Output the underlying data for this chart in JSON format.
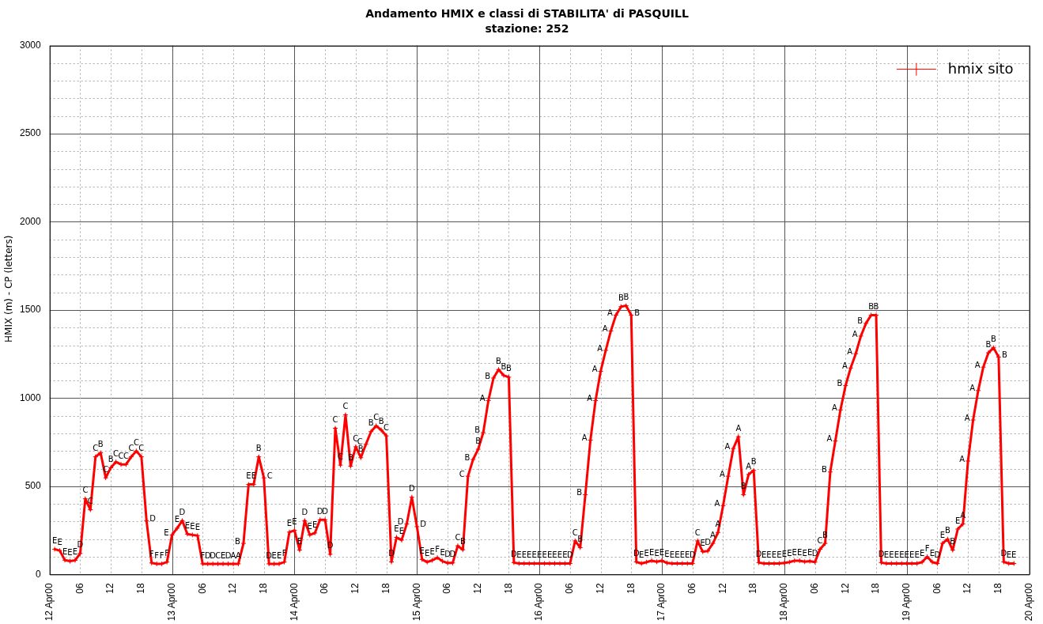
{
  "chart_data": {
    "type": "line",
    "title": "Andamento HMIX e classi di STABILITA' di PASQUILL",
    "subtitle": "stazione: 252",
    "ylabel": "HMIX (m) - CP (letters)",
    "xlim": [
      "--04-12T00:00",
      "--04-20T00:00"
    ],
    "xticks": [
      {
        "value": "--04-12T00:00",
        "label": "12 Apr00"
      },
      {
        "value": "--04-12T06:00",
        "label": "06"
      },
      {
        "value": "--04-12T12:00",
        "label": "12"
      },
      {
        "value": "--04-12T18:00",
        "label": "18"
      },
      {
        "value": "--04-13T00:00",
        "label": "13 Apr00"
      },
      {
        "value": "--04-13T06:00",
        "label": "06"
      },
      {
        "value": "--04-13T12:00",
        "label": "12"
      },
      {
        "value": "--04-13T18:00",
        "label": "18"
      },
      {
        "value": "--04-14T00:00",
        "label": "14 Apr00"
      },
      {
        "value": "--04-14T06:00",
        "label": "06"
      },
      {
        "value": "--04-14T12:00",
        "label": "12"
      },
      {
        "value": "--04-14T18:00",
        "label": "18"
      },
      {
        "value": "--04-15T00:00",
        "label": "15 Apr00"
      },
      {
        "value": "--04-15T06:00",
        "label": "06"
      },
      {
        "value": "--04-15T12:00",
        "label": "12"
      },
      {
        "value": "--04-15T18:00",
        "label": "18"
      },
      {
        "value": "--04-16T00:00",
        "label": "16 Apr00"
      },
      {
        "value": "--04-16T06:00",
        "label": "06"
      },
      {
        "value": "--04-16T12:00",
        "label": "12"
      },
      {
        "value": "--04-16T18:00",
        "label": "18"
      },
      {
        "value": "--04-17T00:00",
        "label": "17 Apr00"
      },
      {
        "value": "--04-17T06:00",
        "label": "06"
      },
      {
        "value": "--04-17T12:00",
        "label": "12"
      },
      {
        "value": "--04-17T18:00",
        "label": "18"
      },
      {
        "value": "--04-18T00:00",
        "label": "18 Apr00"
      },
      {
        "value": "--04-18T06:00",
        "label": "06"
      },
      {
        "value": "--04-18T12:00",
        "label": "12"
      },
      {
        "value": "--04-18T18:00",
        "label": "18"
      },
      {
        "value": "--04-19T00:00",
        "label": "19 Apr00"
      },
      {
        "value": "--04-19T06:00",
        "label": "06"
      },
      {
        "value": "--04-19T12:00",
        "label": "12"
      },
      {
        "value": "--04-19T18:00",
        "label": "18"
      },
      {
        "value": "--04-20T00:00",
        "label": "20 Apr00"
      }
    ],
    "ylim": [
      0,
      3000
    ],
    "yticks": [
      0,
      {
        "value": 100,
        "label": null
      },
      {
        "value": 200,
        "label": null
      },
      {
        "value": 300,
        "label": null
      },
      {
        "value": 400,
        "label": null
      },
      500,
      {
        "value": 600,
        "label": null
      },
      {
        "value": 700,
        "label": null
      },
      {
        "value": 800,
        "label": null
      },
      {
        "value": 900,
        "label": null
      },
      1000,
      {
        "value": 1100,
        "label": null
      },
      {
        "value": 1200,
        "label": null
      },
      {
        "value": 1300,
        "label": null
      },
      {
        "value": 1400,
        "label": null
      },
      1500,
      {
        "value": 1600,
        "label": null
      },
      {
        "value": 1700,
        "label": null
      },
      {
        "value": 1800,
        "label": null
      },
      {
        "value": 1900,
        "label": null
      },
      2000,
      {
        "value": 2100,
        "label": null
      },
      {
        "value": 2200,
        "label": null
      },
      {
        "value": 2300,
        "label": null
      },
      {
        "value": 2400,
        "label": null
      },
      2500,
      {
        "value": 2600,
        "label": null
      },
      {
        "value": 2700,
        "label": null
      },
      {
        "value": 2800,
        "label": null
      },
      {
        "value": 2900,
        "label": null
      },
      3000
    ],
    "grid": true,
    "legend": "top right",
    "marker": "cross",
    "line_style": "solid",
    "series": [
      {
        "name": "hmix sito",
        "color": "#ff0000",
        "x": [
          "--04-12T01:00",
          "--04-12T02:00",
          "--04-12T03:00",
          "--04-12T04:00",
          "--04-12T05:00",
          "--04-12T06:00",
          "--04-12T07:00",
          "--04-12T08:00",
          "--04-12T09:00",
          "--04-12T10:00",
          "--04-12T11:00",
          "--04-12T12:00",
          "--04-12T13:00",
          "--04-12T14:00",
          "--04-12T15:00",
          "--04-12T16:00",
          "--04-12T17:00",
          "--04-12T18:00",
          "--04-12T19:00",
          "--04-12T20:00",
          "--04-12T21:00",
          "--04-12T22:00",
          "--04-12T23:00",
          "--04-13T00:00",
          "--04-13T01:00",
          "--04-13T02:00",
          "--04-13T03:00",
          "--04-13T04:00",
          "--04-13T05:00",
          "--04-13T06:00",
          "--04-13T07:00",
          "--04-13T08:00",
          "--04-13T09:00",
          "--04-13T10:00",
          "--04-13T11:00",
          "--04-13T12:00",
          "--04-13T13:00",
          "--04-13T14:00",
          "--04-13T15:00",
          "--04-13T16:00",
          "--04-13T17:00",
          "--04-13T18:00",
          "--04-13T19:00",
          "--04-13T20:00",
          "--04-13T21:00",
          "--04-13T22:00",
          "--04-13T23:00",
          "--04-14T00:00",
          "--04-14T01:00",
          "--04-14T02:00",
          "--04-14T03:00",
          "--04-14T04:00",
          "--04-14T05:00",
          "--04-14T06:00",
          "--04-14T07:00",
          "--04-14T08:00",
          "--04-14T09:00",
          "--04-14T10:00",
          "--04-14T11:00",
          "--04-14T12:00",
          "--04-14T13:00",
          "--04-14T14:00",
          "--04-14T15:00",
          "--04-14T16:00",
          "--04-14T17:00",
          "--04-14T18:00",
          "--04-14T19:00",
          "--04-14T20:00",
          "--04-14T21:00",
          "--04-14T22:00",
          "--04-14T23:00",
          "--04-15T00:00",
          "--04-15T01:00",
          "--04-15T02:00",
          "--04-15T03:00",
          "--04-15T04:00",
          "--04-15T05:00",
          "--04-15T06:00",
          "--04-15T07:00",
          "--04-15T08:00",
          "--04-15T09:00",
          "--04-15T10:00",
          "--04-15T11:00",
          "--04-15T12:00",
          "--04-15T13:00",
          "--04-15T14:00",
          "--04-15T15:00",
          "--04-15T16:00",
          "--04-15T17:00",
          "--04-15T18:00",
          "--04-15T19:00",
          "--04-15T20:00",
          "--04-15T21:00",
          "--04-15T22:00",
          "--04-15T23:00",
          "--04-16T00:00",
          "--04-16T01:00",
          "--04-16T02:00",
          "--04-16T03:00",
          "--04-16T04:00",
          "--04-16T05:00",
          "--04-16T06:00",
          "--04-16T07:00",
          "--04-16T08:00",
          "--04-16T09:00",
          "--04-16T10:00",
          "--04-16T11:00",
          "--04-16T12:00",
          "--04-16T13:00",
          "--04-16T14:00",
          "--04-16T15:00",
          "--04-16T16:00",
          "--04-16T17:00",
          "--04-16T18:00",
          "--04-16T19:00",
          "--04-16T20:00",
          "--04-16T21:00",
          "--04-16T22:00",
          "--04-16T23:00",
          "--04-17T00:00",
          "--04-17T01:00",
          "--04-17T02:00",
          "--04-17T03:00",
          "--04-17T04:00",
          "--04-17T05:00",
          "--04-17T06:00",
          "--04-17T07:00",
          "--04-17T08:00",
          "--04-17T09:00",
          "--04-17T10:00",
          "--04-17T11:00",
          "--04-17T12:00",
          "--04-17T13:00",
          "--04-17T14:00",
          "--04-17T15:00",
          "--04-17T16:00",
          "--04-17T17:00",
          "--04-17T18:00",
          "--04-17T19:00",
          "--04-17T20:00",
          "--04-17T21:00",
          "--04-17T22:00",
          "--04-17T23:00",
          "--04-18T00:00",
          "--04-18T01:00",
          "--04-18T02:00",
          "--04-18T03:00",
          "--04-18T04:00",
          "--04-18T05:00",
          "--04-18T06:00",
          "--04-18T07:00",
          "--04-18T08:00",
          "--04-18T09:00",
          "--04-18T10:00",
          "--04-18T11:00",
          "--04-18T12:00",
          "--04-18T13:00",
          "--04-18T14:00",
          "--04-18T15:00",
          "--04-18T16:00",
          "--04-18T17:00",
          "--04-18T18:00",
          "--04-18T19:00",
          "--04-18T20:00",
          "--04-18T21:00",
          "--04-18T22:00",
          "--04-18T23:00",
          "--04-19T00:00",
          "--04-19T01:00",
          "--04-19T02:00",
          "--04-19T03:00",
          "--04-19T04:00",
          "--04-19T05:00",
          "--04-19T06:00",
          "--04-19T07:00",
          "--04-19T08:00",
          "--04-19T09:00",
          "--04-19T10:00",
          "--04-19T11:00",
          "--04-19T12:00",
          "--04-19T13:00",
          "--04-19T14:00",
          "--04-19T15:00",
          "--04-19T16:00",
          "--04-19T17:00",
          "--04-19T18:00",
          "--04-19T19:00",
          "--04-19T20:00",
          "--04-19T21:00"
        ],
        "values": [
          143,
          135,
          81,
          75,
          80,
          119,
          429,
          367,
          667,
          690,
          548,
          605,
          638,
          624,
          624,
          667,
          700,
          667,
          305,
          65,
          60,
          60,
          70,
          224,
          262,
          305,
          229,
          224,
          220,
          60,
          60,
          60,
          60,
          60,
          60,
          60,
          60,
          176,
          510,
          510,
          667,
          548,
          60,
          60,
          60,
          70,
          240,
          250,
          138,
          305,
          224,
          235,
          310,
          310,
          114,
          829,
          620,
          905,
          614,
          724,
          662,
          738,
          810,
          843,
          819,
          786,
          71,
          210,
          195,
          286,
          438,
          271,
          85,
          70,
          80,
          95,
          75,
          65,
          65,
          162,
          140,
          557,
          652,
          710,
          805,
          986,
          1114,
          1162,
          1129,
          1119,
          67,
          62,
          62,
          62,
          62,
          62,
          62,
          62,
          62,
          62,
          62,
          62,
          190,
          152,
          452,
          762,
          986,
          1152,
          1271,
          1381,
          1471,
          1519,
          1524,
          1471,
          71,
          62,
          70,
          78,
          72,
          78,
          65,
          62,
          62,
          62,
          62,
          62,
          190,
          129,
          133,
          176,
          238,
          390,
          557,
          714,
          781,
          452,
          567,
          590,
          67,
          62,
          62,
          62,
          62,
          65,
          70,
          78,
          78,
          72,
          75,
          70,
          143,
          176,
          581,
          757,
          933,
          1071,
          1171,
          1252,
          1352,
          1424,
          1471,
          1471,
          67,
          62,
          62,
          62,
          62,
          62,
          62,
          62,
          70,
          100,
          70,
          62,
          176,
          200,
          138,
          257,
          286,
          643,
          876,
          1043,
          1176,
          1257,
          1286,
          1233,
          71,
          62,
          62
        ],
        "value_labels": [
          "E",
          "E",
          "E",
          "E",
          "E",
          "D",
          "C",
          "C",
          "C",
          "B",
          "C",
          "B",
          "C",
          "C",
          "C",
          "C",
          "C",
          "C",
          "D",
          "F",
          "F",
          "F",
          "F",
          "E",
          "E",
          "D",
          "E",
          "E",
          "E",
          "F",
          "D",
          "D",
          "C",
          "E",
          "D",
          "A",
          "A",
          "B",
          "E",
          "E",
          "B",
          "C",
          "D",
          "E",
          "E",
          "F",
          "E",
          "E",
          "E",
          "D",
          "E",
          "E",
          "D",
          "D",
          "D",
          "C",
          "C",
          "C",
          "B",
          "C",
          "B",
          "C",
          "B",
          "C",
          "B",
          "C",
          "D",
          "E",
          "E",
          "D",
          "D",
          "D",
          "E",
          "E",
          "E",
          "F",
          "E",
          "D",
          "D",
          "C",
          "B",
          "C",
          "B",
          "B",
          "B",
          "A",
          "B",
          "B",
          "B",
          "B",
          "D",
          "E",
          "E",
          "E",
          "E",
          "E",
          "E",
          "E",
          "E",
          "E",
          "E",
          "D",
          "C",
          "B",
          "B",
          "A",
          "A",
          "A",
          "A",
          "A",
          "A",
          "B",
          "B",
          "B",
          "D",
          "E",
          "E",
          "E",
          "E",
          "E",
          "E",
          "E",
          "E",
          "E",
          "E",
          "D",
          "C",
          "E",
          "D",
          "A",
          "A",
          "A",
          "A",
          "A",
          "A",
          "B",
          "A",
          "B",
          "D",
          "E",
          "E",
          "E",
          "E",
          "E",
          "E",
          "E",
          "E",
          "E",
          "E",
          "D",
          "C",
          "B",
          "B",
          "A",
          "A",
          "B",
          "A",
          "A",
          "A",
          "B",
          "B",
          "B",
          "D",
          "E",
          "E",
          "E",
          "E",
          "E",
          "E",
          "E",
          "E",
          "F",
          "E",
          "D",
          "E",
          "B",
          "B",
          "E",
          "A",
          "A",
          "A",
          "A",
          "A",
          "B",
          "B",
          "B",
          "D",
          "E",
          "E"
        ]
      }
    ]
  }
}
